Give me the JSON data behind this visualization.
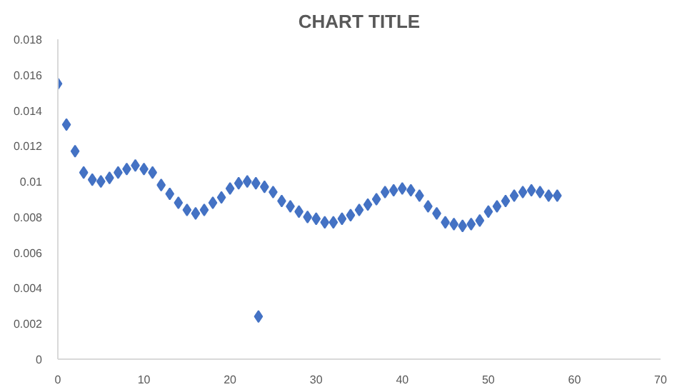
{
  "chart_data": {
    "type": "scatter",
    "title": "CHART TITLE",
    "marker": "diamond",
    "x": [
      0,
      1,
      2,
      3,
      4,
      5,
      6,
      7,
      8,
      9,
      10,
      11,
      12,
      13,
      14,
      15,
      16,
      17,
      18,
      19,
      20,
      21,
      22,
      23,
      24,
      25,
      26,
      27,
      28,
      29,
      30,
      31,
      32,
      33,
      34,
      35,
      36,
      37,
      38,
      39,
      40,
      41,
      42,
      43,
      44,
      45,
      46,
      47,
      48,
      49,
      50,
      51,
      52,
      53,
      54,
      55,
      56,
      57,
      58,
      23.3
    ],
    "series": [
      {
        "color": "#4472c4",
        "values": [
          0.0155,
          0.0132,
          0.0117,
          0.0105,
          0.0101,
          0.01,
          0.0102,
          0.0105,
          0.0107,
          0.0109,
          0.0107,
          0.0105,
          0.0098,
          0.0093,
          0.0088,
          0.0084,
          0.0082,
          0.0084,
          0.0088,
          0.0091,
          0.0096,
          0.0099,
          0.01,
          0.0099,
          0.0097,
          0.0094,
          0.0089,
          0.0086,
          0.0083,
          0.008,
          0.0079,
          0.0077,
          0.0077,
          0.0079,
          0.0081,
          0.0084,
          0.0087,
          0.009,
          0.0094,
          0.0095,
          0.0096,
          0.0095,
          0.0092,
          0.0086,
          0.0082,
          0.0077,
          0.0076,
          0.0075,
          0.0076,
          0.0078,
          0.0083,
          0.0086,
          0.0089,
          0.0092,
          0.0094,
          0.0095,
          0.0094,
          0.0092,
          0.0092,
          0.0024
        ]
      }
    ],
    "xlim": [
      0,
      70
    ],
    "xticks": [
      0,
      10,
      20,
      30,
      40,
      50,
      60,
      70
    ],
    "ylim": [
      0,
      0.018
    ],
    "yticks": [
      0,
      0.002,
      0.004,
      0.006,
      0.008,
      0.01,
      0.012,
      0.014,
      0.016,
      0.018
    ]
  }
}
